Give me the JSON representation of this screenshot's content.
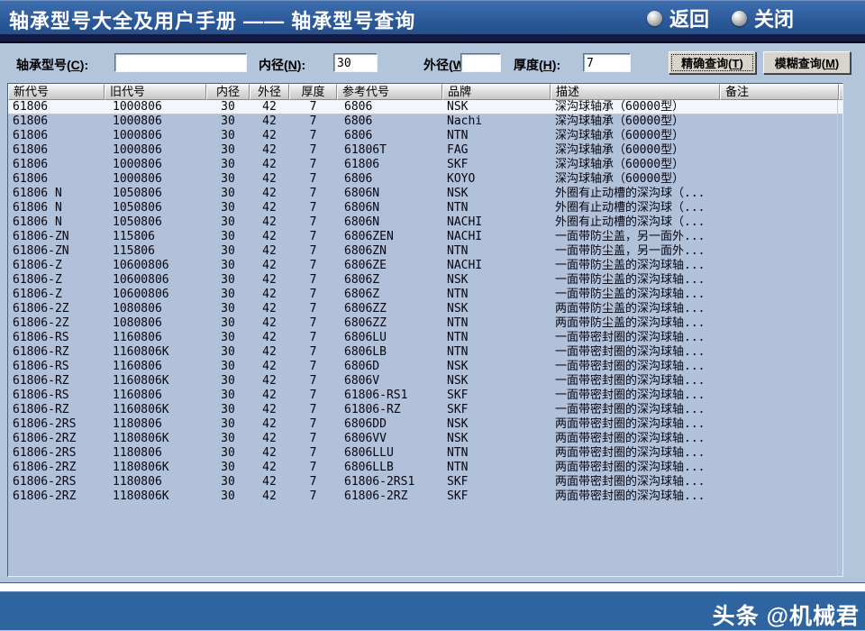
{
  "window": {
    "title": "轴承型号大全及用户手册 —— 轴承型号查询",
    "back_label": "返回",
    "close_label": "关闭"
  },
  "search_form": {
    "model_label": "轴承型号(C):",
    "model_value": "",
    "inner_label": "内径(N):",
    "inner_value": "30",
    "outer_label": "外径(W):",
    "outer_value": "",
    "thickness_label": "厚度(H):",
    "thickness_value": "7",
    "exact_button": "精确查询(T)",
    "fuzzy_button": "模糊查询(M)"
  },
  "table": {
    "headers": [
      "新代号",
      "旧代号",
      "内径",
      "外径",
      "厚度",
      "参考代号",
      "品牌",
      "描述",
      "备注"
    ],
    "numeric_columns": [
      2,
      3,
      4
    ],
    "selected_row_index": 0,
    "rows": [
      [
        "61806",
        "1000806",
        "30",
        "42",
        "7",
        "6806",
        "NSK",
        "深沟球轴承（60000型）",
        ""
      ],
      [
        "61806",
        "1000806",
        "30",
        "42",
        "7",
        "6806",
        "Nachi",
        "深沟球轴承（60000型）",
        ""
      ],
      [
        "61806",
        "1000806",
        "30",
        "42",
        "7",
        "6806",
        "NTN",
        "深沟球轴承（60000型）",
        ""
      ],
      [
        "61806",
        "1000806",
        "30",
        "42",
        "7",
        "61806T",
        "FAG",
        "深沟球轴承（60000型）",
        ""
      ],
      [
        "61806",
        "1000806",
        "30",
        "42",
        "7",
        "61806",
        "SKF",
        "深沟球轴承（60000型）",
        ""
      ],
      [
        "61806",
        "1000806",
        "30",
        "42",
        "7",
        "6806",
        "KOYO",
        "深沟球轴承（60000型）",
        ""
      ],
      [
        "61806 N",
        "1050806",
        "30",
        "42",
        "7",
        "6806N",
        "NSK",
        "外圈有止动槽的深沟球（...",
        ""
      ],
      [
        "61806 N",
        "1050806",
        "30",
        "42",
        "7",
        "6806N",
        "NTN",
        "外圈有止动槽的深沟球（...",
        ""
      ],
      [
        "61806 N",
        "1050806",
        "30",
        "42",
        "7",
        "6806N",
        "NACHI",
        "外圈有止动槽的深沟球（...",
        ""
      ],
      [
        "61806-ZN",
        "115806",
        "30",
        "42",
        "7",
        "6806ZEN",
        "NACHI",
        "一面带防尘盖，另一面外...",
        ""
      ],
      [
        "61806-ZN",
        "115806",
        "30",
        "42",
        "7",
        "6806ZN",
        "NTN",
        "一面带防尘盖，另一面外...",
        ""
      ],
      [
        "61806-Z",
        "10600806",
        "30",
        "42",
        "7",
        "6806ZE",
        "NACHI",
        "一面带防尘盖的深沟球轴...",
        ""
      ],
      [
        "61806-Z",
        "10600806",
        "30",
        "42",
        "7",
        "6806Z",
        "NSK",
        "一面带防尘盖的深沟球轴...",
        ""
      ],
      [
        "61806-Z",
        "10600806",
        "30",
        "42",
        "7",
        "6806Z",
        "NTN",
        "一面带防尘盖的深沟球轴...",
        ""
      ],
      [
        "61806-2Z",
        "1080806",
        "30",
        "42",
        "7",
        "6806ZZ",
        "NSK",
        "两面带防尘盖的深沟球轴...",
        ""
      ],
      [
        "61806-2Z",
        "1080806",
        "30",
        "42",
        "7",
        "6806ZZ",
        "NTN",
        "两面带防尘盖的深沟球轴...",
        ""
      ],
      [
        "61806-RS",
        "1160806",
        "30",
        "42",
        "7",
        "6806LU",
        "NTN",
        "一面带密封圈的深沟球轴...",
        ""
      ],
      [
        "61806-RZ",
        "1160806K",
        "30",
        "42",
        "7",
        "6806LB",
        "NTN",
        "一面带密封圈的深沟球轴...",
        ""
      ],
      [
        "61806-RS",
        "1160806",
        "30",
        "42",
        "7",
        "6806D",
        "NSK",
        "一面带密封圈的深沟球轴...",
        ""
      ],
      [
        "61806-RZ",
        "1160806K",
        "30",
        "42",
        "7",
        "6806V",
        "NSK",
        "一面带密封圈的深沟球轴...",
        ""
      ],
      [
        "61806-RS",
        "1160806",
        "30",
        "42",
        "7",
        "61806-RS1",
        "SKF",
        "一面带密封圈的深沟球轴...",
        ""
      ],
      [
        "61806-RZ",
        "1160806K",
        "30",
        "42",
        "7",
        "61806-RZ",
        "SKF",
        "一面带密封圈的深沟球轴...",
        ""
      ],
      [
        "61806-2RS",
        "1180806",
        "30",
        "42",
        "7",
        "6806DD",
        "NSK",
        "两面带密封圈的深沟球轴...",
        ""
      ],
      [
        "61806-2RZ",
        "1180806K",
        "30",
        "42",
        "7",
        "6806VV",
        "NSK",
        "两面带密封圈的深沟球轴...",
        ""
      ],
      [
        "61806-2RS",
        "1180806",
        "30",
        "42",
        "7",
        "6806LLU",
        "NTN",
        "两面带密封圈的深沟球轴...",
        ""
      ],
      [
        "61806-2RZ",
        "1180806K",
        "30",
        "42",
        "7",
        "6806LLB",
        "NTN",
        "两面带密封圈的深沟球轴...",
        ""
      ],
      [
        "61806-2RS",
        "1180806",
        "30",
        "42",
        "7",
        "61806-2RS1",
        "SKF",
        "两面带密封圈的深沟球轴...",
        ""
      ],
      [
        "61806-2RZ",
        "1180806K",
        "30",
        "42",
        "7",
        "61806-2RZ",
        "SKF",
        "两面带密封圈的深沟球轴...",
        ""
      ]
    ]
  },
  "footer": {
    "watermark": "头条 @机械君"
  },
  "colors": {
    "titlebar_blue": "#2d5a9b",
    "panel_blue": "#b2c5da",
    "row_blue": "#b1c1d9",
    "selected_row": "#f3f6fa",
    "footer_blue": "#2e64a0",
    "dark_strip": "#111b46"
  }
}
